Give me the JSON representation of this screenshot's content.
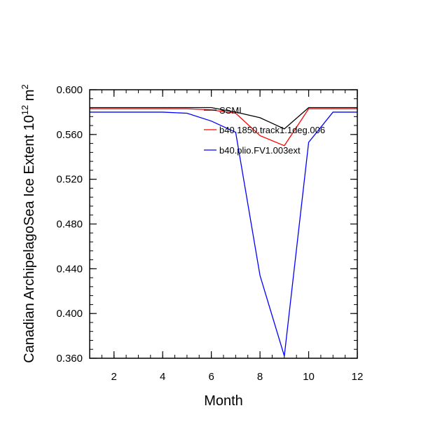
{
  "chart_data": {
    "type": "line",
    "title": "",
    "xlabel": "Month",
    "ylabel": {
      "base": "Canadian ArchipelagoSea Ice Extent 10",
      "exponent": "12",
      "unit": " m",
      "unit_exponent": "2"
    },
    "xlim": [
      1,
      12
    ],
    "ylim": [
      0.36,
      0.6
    ],
    "x": [
      1,
      2,
      3,
      4,
      5,
      6,
      7,
      8,
      9,
      10,
      11,
      12
    ],
    "x_ticks": [
      2,
      4,
      6,
      8,
      10,
      12
    ],
    "y_ticks": [
      0.36,
      0.4,
      0.44,
      0.48,
      0.52,
      0.56,
      0.6
    ],
    "x_tick_labels": [
      "2",
      "4",
      "6",
      "8",
      "10",
      "12"
    ],
    "y_tick_labels": [
      "0.360",
      "0.400",
      "0.440",
      "0.480",
      "0.520",
      "0.560",
      "0.600"
    ],
    "grid": false,
    "legend_position": "top-right",
    "series": [
      {
        "name": "SSMI",
        "color": "#000000",
        "values": [
          0.584,
          0.584,
          0.584,
          0.584,
          0.584,
          0.584,
          0.58,
          0.575,
          0.565,
          0.584,
          0.584,
          0.584
        ]
      },
      {
        "name": "b40.1850.track1.1deg.006",
        "color": "#ff0000",
        "values": [
          0.583,
          0.583,
          0.583,
          0.583,
          0.583,
          0.582,
          0.579,
          0.559,
          0.55,
          0.583,
          0.583,
          0.583
        ]
      },
      {
        "name": "b40.plio.FV1.003ext",
        "color": "#0000ff",
        "values": [
          0.58,
          0.58,
          0.58,
          0.58,
          0.579,
          0.572,
          0.562,
          0.434,
          0.362,
          0.553,
          0.58,
          0.58
        ]
      }
    ]
  }
}
